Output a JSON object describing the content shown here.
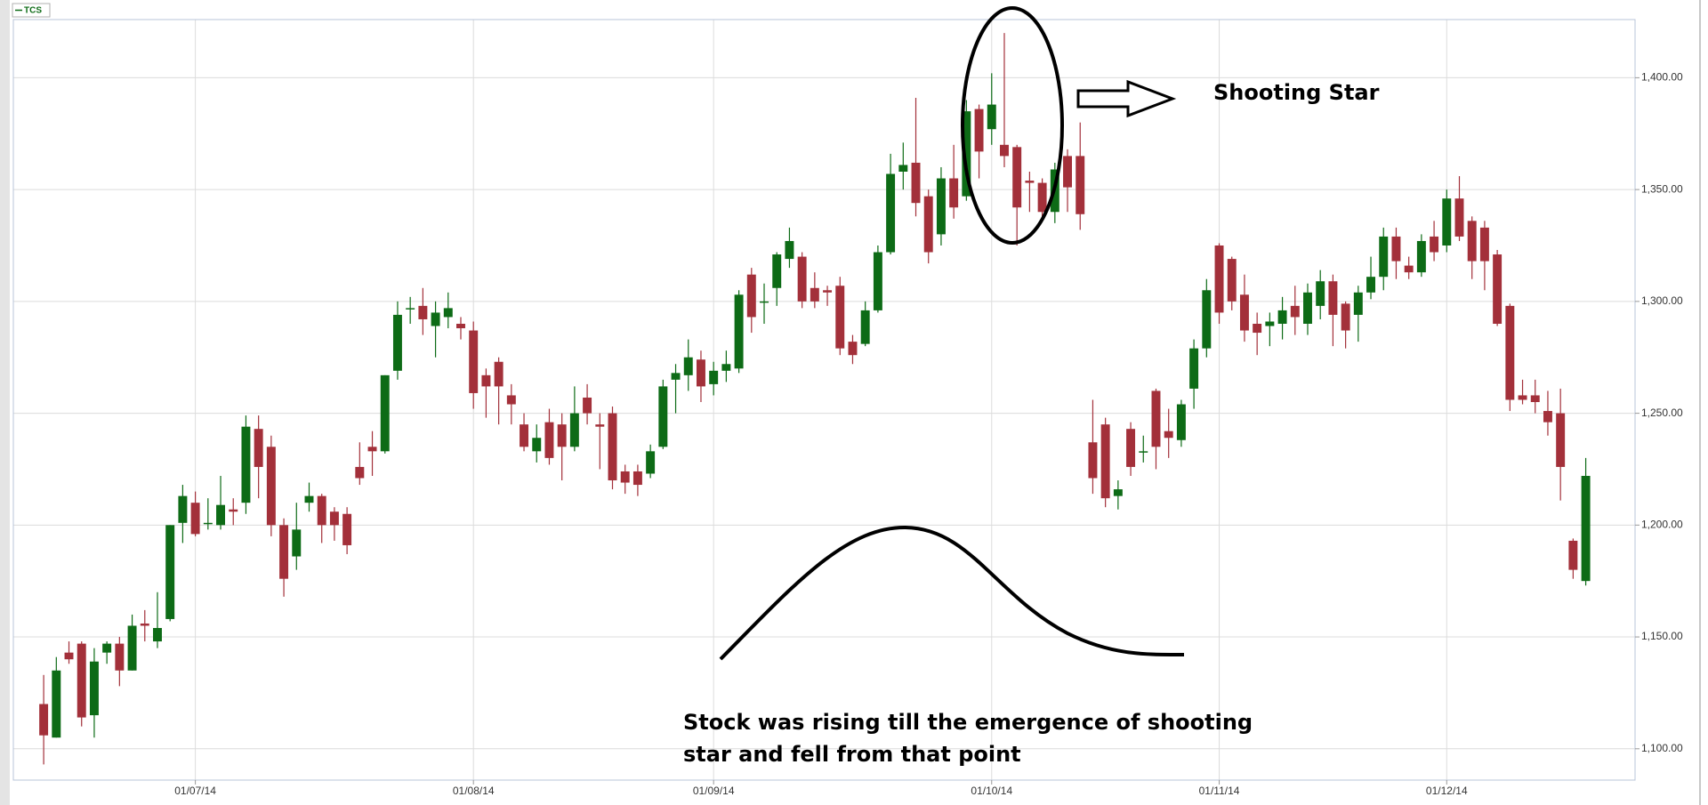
{
  "chart_data": {
    "type": "candlestick",
    "series_name": "TCS",
    "up_color": "#0d6b16",
    "down_color": "#a3303a",
    "open": [
      1120,
      1105,
      1143,
      1147,
      1115,
      1143,
      1147,
      1135,
      1156,
      1148,
      1158,
      1201,
      1210,
      1201,
      1200,
      1207,
      1210,
      1243,
      1235,
      1200,
      1186,
      1210,
      1213,
      1206,
      1205,
      1226,
      1235,
      1233,
      1269,
      1297,
      1298,
      1289,
      1293,
      1290,
      1287,
      1267,
      1273,
      1258,
      1245,
      1233,
      1246,
      1245,
      1235,
      1257,
      1245,
      1250,
      1224,
      1224,
      1223,
      1235,
      1265,
      1267,
      1274,
      1263,
      1269,
      1270,
      1312,
      1300,
      1306,
      1319,
      1320,
      1306,
      1305,
      1307,
      1282,
      1281,
      1296,
      1322,
      1358,
      1362,
      1347,
      1330,
      1355,
      1347,
      1386,
      1377,
      1370,
      1369,
      1354,
      1353,
      1340,
      1365,
      1365,
      1237,
      1245,
      1213,
      1243,
      1233,
      1260,
      1242,
      1238,
      1261,
      1279,
      1325,
      1319,
      1303,
      1290,
      1289,
      1290,
      1298,
      1290,
      1298,
      1309,
      1299,
      1294,
      1304,
      1311,
      1329,
      1316,
      1313,
      1329,
      1325,
      1346,
      1336,
      1333,
      1321,
      1298,
      1258,
      1258,
      1251,
      1250,
      1193,
      1175
    ],
    "high": [
      1133,
      1141,
      1148,
      1148,
      1145,
      1148,
      1150,
      1160,
      1162,
      1170,
      1200,
      1218,
      1215,
      1212,
      1222,
      1212,
      1249,
      1249,
      1240,
      1203,
      1210,
      1219,
      1214,
      1208,
      1208,
      1237,
      1242,
      1267,
      1300,
      1302,
      1306,
      1300,
      1304,
      1293,
      1291,
      1270,
      1275,
      1263,
      1250,
      1245,
      1252,
      1250,
      1262,
      1263,
      1250,
      1253,
      1227,
      1227,
      1236,
      1265,
      1272,
      1283,
      1278,
      1273,
      1278,
      1305,
      1315,
      1308,
      1322,
      1333,
      1322,
      1313,
      1307,
      1311,
      1285,
      1300,
      1325,
      1366,
      1371,
      1391,
      1350,
      1360,
      1370,
      1390,
      1388,
      1402,
      1420,
      1370,
      1358,
      1355,
      1362,
      1368,
      1380,
      1256,
      1248,
      1220,
      1246,
      1240,
      1261,
      1252,
      1256,
      1283,
      1310,
      1326,
      1320,
      1312,
      1295,
      1295,
      1302,
      1307,
      1308,
      1314,
      1312,
      1300,
      1307,
      1320,
      1333,
      1333,
      1320,
      1330,
      1336,
      1350,
      1356,
      1338,
      1336,
      1323,
      1299,
      1265,
      1265,
      1260,
      1261,
      1194,
      1230
    ],
    "low": [
      1093,
      1105,
      1138,
      1110,
      1105,
      1138,
      1128,
      1135,
      1148,
      1145,
      1157,
      1192,
      1195,
      1198,
      1198,
      1200,
      1205,
      1212,
      1195,
      1168,
      1180,
      1206,
      1192,
      1193,
      1187,
      1218,
      1222,
      1232,
      1265,
      1290,
      1285,
      1275,
      1288,
      1283,
      1252,
      1248,
      1245,
      1245,
      1233,
      1228,
      1227,
      1220,
      1233,
      1245,
      1225,
      1216,
      1214,
      1213,
      1221,
      1234,
      1250,
      1260,
      1255,
      1258,
      1264,
      1268,
      1286,
      1290,
      1298,
      1315,
      1297,
      1297,
      1298,
      1276,
      1272,
      1280,
      1295,
      1321,
      1350,
      1338,
      1317,
      1325,
      1337,
      1345,
      1355,
      1370,
      1360,
      1325,
      1340,
      1337,
      1335,
      1340,
      1332,
      1214,
      1208,
      1207,
      1222,
      1228,
      1225,
      1230,
      1235,
      1252,
      1275,
      1290,
      1296,
      1282,
      1276,
      1280,
      1283,
      1285,
      1285,
      1292,
      1280,
      1279,
      1282,
      1301,
      1305,
      1310,
      1310,
      1311,
      1318,
      1322,
      1327,
      1310,
      1305,
      1289,
      1251,
      1254,
      1250,
      1240,
      1211,
      1176,
      1173
    ],
    "close": [
      1106,
      1135,
      1140,
      1114,
      1139,
      1147,
      1135,
      1155,
      1155,
      1154,
      1200,
      1213,
      1196,
      1201,
      1209,
      1206,
      1244,
      1226,
      1200,
      1176,
      1198,
      1213,
      1200,
      1200,
      1191,
      1221,
      1233,
      1267,
      1294,
      1297,
      1292,
      1295,
      1297,
      1288,
      1259,
      1262,
      1262,
      1254,
      1235,
      1239,
      1230,
      1235,
      1250,
      1250,
      1244,
      1220,
      1219,
      1218,
      1233,
      1262,
      1268,
      1275,
      1262,
      1269,
      1272,
      1303,
      1293,
      1300,
      1321,
      1327,
      1300,
      1300,
      1304,
      1279,
      1276,
      1296,
      1322,
      1357,
      1361,
      1344,
      1322,
      1355,
      1342,
      1385,
      1367,
      1388,
      1365,
      1342,
      1353,
      1340,
      1359,
      1351,
      1339,
      1221,
      1212,
      1216,
      1226,
      1233,
      1235,
      1239,
      1254,
      1279,
      1305,
      1295,
      1300,
      1287,
      1286,
      1291,
      1296,
      1293,
      1304,
      1309,
      1294,
      1287,
      1304,
      1311,
      1329,
      1318,
      1313,
      1327,
      1322,
      1346,
      1329,
      1318,
      1318,
      1290,
      1256,
      1256,
      1255,
      1246,
      1226,
      1180,
      1222
    ],
    "xlim": [
      -2.4,
      125.9
    ],
    "xticks": [
      {
        "value": 12,
        "label": "01/07/14"
      },
      {
        "value": 34,
        "label": "01/08/14"
      },
      {
        "value": 53,
        "label": "01/09/14"
      },
      {
        "value": 75,
        "label": "01/10/14"
      },
      {
        "value": 93,
        "label": "01/11/14"
      },
      {
        "value": 111,
        "label": "01/12/14"
      }
    ],
    "ylim": [
      1086,
      1426
    ],
    "yticks": [
      {
        "value": 1100,
        "label": "1,100.00"
      },
      {
        "value": 1150,
        "label": "1,150.00"
      },
      {
        "value": 1200,
        "label": "1,200.00"
      },
      {
        "value": 1250,
        "label": "1,250.00"
      },
      {
        "value": 1300,
        "label": "1,300.00"
      },
      {
        "value": 1350,
        "label": "1,350.00"
      },
      {
        "value": 1400,
        "label": "1,400.00"
      }
    ],
    "grid": true,
    "annotations": {
      "callout": "Shooting Star",
      "note": [
        "Stock was rising till the emergence of shooting",
        "star and fell from that point"
      ]
    }
  }
}
